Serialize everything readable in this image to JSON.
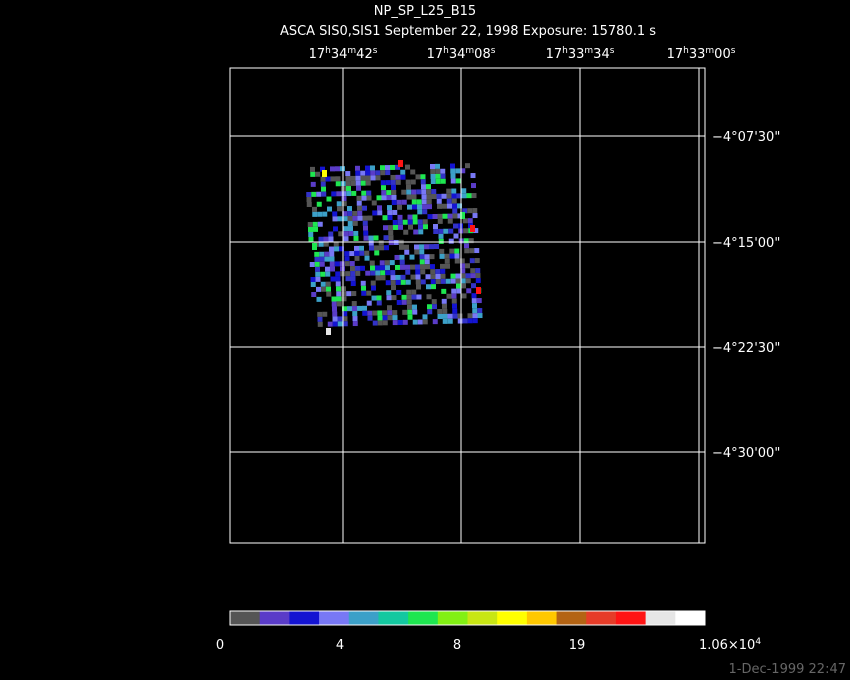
{
  "header": {
    "title": "NP_SP_L25_B15",
    "subtitle": "ASCA SIS0,SIS1 September 22, 1998 Exposure: 15780.1 s"
  },
  "ra_labels": [
    [
      "17",
      "h",
      "34",
      "m",
      "42",
      "s"
    ],
    [
      "17",
      "h",
      "34",
      "m",
      "08",
      "s"
    ],
    [
      "17",
      "h",
      "33",
      "m",
      "34",
      "s"
    ],
    [
      "17",
      "h",
      "33",
      "m",
      "00",
      "s"
    ]
  ],
  "dec_labels": [
    "−4°07'30\"",
    "−4°15'00\"",
    "−4°22'30\"",
    "−4°30'00\""
  ],
  "colorbar": {
    "colors": [
      "#555555",
      "#5a3cc8",
      "#1414d2",
      "#7878f5",
      "#3ca0c8",
      "#14c8a0",
      "#1ee650",
      "#82f014",
      "#c8e614",
      "#ffff00",
      "#ffc800",
      "#b46414",
      "#e63c28",
      "#ff1414",
      "#e6e6e6",
      "#ffffff"
    ],
    "labels": [
      [
        "0"
      ],
      [
        "4"
      ],
      [
        "8"
      ],
      [
        "19"
      ],
      [
        "1.06×10",
        "4"
      ]
    ]
  },
  "footer": {
    "timestamp": "1-Dec-1999 22:47"
  }
}
